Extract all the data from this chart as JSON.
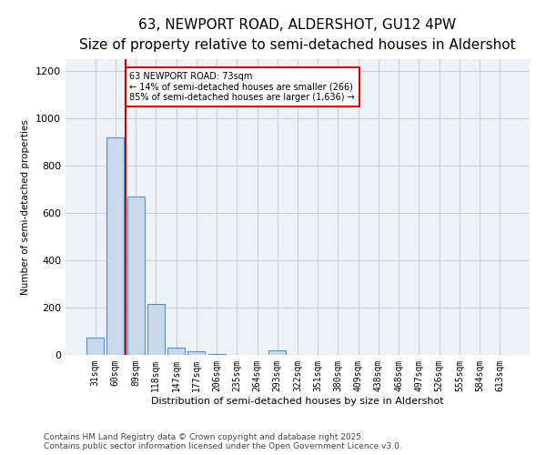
{
  "title1": "63, NEWPORT ROAD, ALDERSHOT, GU12 4PW",
  "title2": "Size of property relative to semi-detached houses in Aldershot",
  "xlabel": "Distribution of semi-detached houses by size in Aldershot",
  "ylabel": "Number of semi-detached properties",
  "categories": [
    "31sqm",
    "60sqm",
    "89sqm",
    "118sqm",
    "147sqm",
    "177sqm",
    "206sqm",
    "235sqm",
    "264sqm",
    "293sqm",
    "322sqm",
    "351sqm",
    "380sqm",
    "409sqm",
    "438sqm",
    "468sqm",
    "497sqm",
    "526sqm",
    "555sqm",
    "584sqm",
    "613sqm"
  ],
  "values": [
    75,
    920,
    670,
    215,
    30,
    15,
    5,
    0,
    0,
    20,
    0,
    0,
    0,
    0,
    0,
    0,
    0,
    0,
    0,
    0,
    0
  ],
  "bar_color": "#c9d9ec",
  "bar_edge_color": "#5b8fc9",
  "property_line_x": 1.5,
  "annotation_text": "63 NEWPORT ROAD: 73sqm\n← 14% of semi-detached houses are smaller (266)\n85% of semi-detached houses are larger (1,636) →",
  "annotation_box_color": "#ffffff",
  "annotation_box_edge": "#cc0000",
  "line_color": "#cc0000",
  "footer_text": "Contains HM Land Registry data © Crown copyright and database right 2025.\nContains public sector information licensed under the Open Government Licence v3.0.",
  "ylim": [
    0,
    1250
  ],
  "yticks": [
    0,
    200,
    400,
    600,
    800,
    1000,
    1200
  ],
  "grid_color": "#cccccc",
  "background_color": "#edf2f9",
  "title1_fontsize": 11,
  "title2_fontsize": 9,
  "footer_fontsize": 6.5
}
